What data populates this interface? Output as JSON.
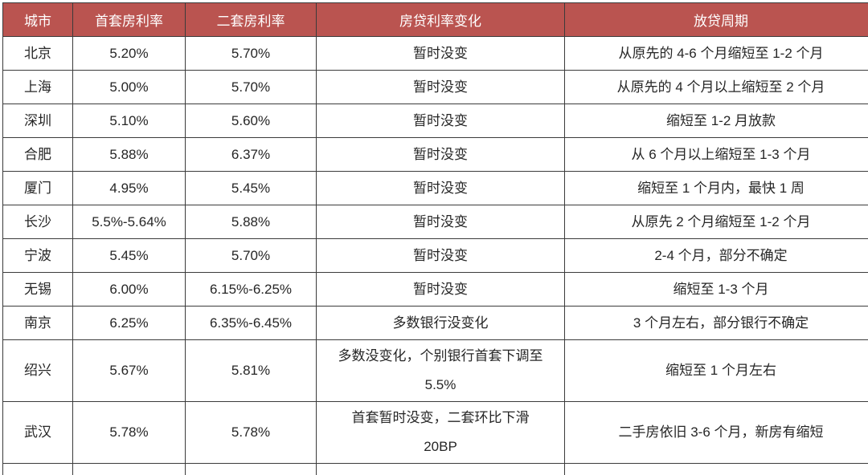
{
  "colors": {
    "header_bg": "#BA5450",
    "header_text": "#FFFFFF",
    "border_color": "#3B3B3B",
    "body_text": "#262626",
    "page_bg": "#FFFFFF"
  },
  "table": {
    "columns": [
      "城市",
      "首套房利率",
      "二套房利率",
      "房贷利率变化",
      "放贷周期"
    ],
    "rows": [
      {
        "cells": [
          "北京",
          "5.20%",
          "5.70%",
          "暂时没变",
          "从原先的 4-6 个月缩短至 1-2 个月"
        ]
      },
      {
        "cells": [
          "上海",
          "5.00%",
          "5.70%",
          "暂时没变",
          "从原先的 4 个月以上缩短至 2 个月"
        ]
      },
      {
        "cells": [
          "深圳",
          "5.10%",
          "5.60%",
          "暂时没变",
          "缩短至 1-2 月放款"
        ]
      },
      {
        "cells": [
          "合肥",
          "5.88%",
          "6.37%",
          "暂时没变",
          "从 6 个月以上缩短至 1-3 个月"
        ]
      },
      {
        "cells": [
          "厦门",
          "4.95%",
          "5.45%",
          "暂时没变",
          "缩短至 1 个月内，最快 1 周"
        ]
      },
      {
        "cells": [
          "长沙",
          "5.5%-5.64%",
          "5.88%",
          "暂时没变",
          "从原先 2 个月缩短至 1-2 个月"
        ]
      },
      {
        "cells": [
          "宁波",
          "5.45%",
          "5.70%",
          "暂时没变",
          "2-4 个月，部分不确定"
        ]
      },
      {
        "cells": [
          "无锡",
          "6.00%",
          "6.15%-6.25%",
          "暂时没变",
          "缩短至 1-3 个月"
        ]
      },
      {
        "cells": [
          "南京",
          "6.25%",
          "6.35%-6.45%",
          "多数银行没变化",
          "3 个月左右，部分银行不确定"
        ]
      },
      {
        "cells": [
          "绍兴",
          "5.67%",
          "5.81%",
          "多数没变化，个别银行首套下调至\n5.5%",
          "缩短至 1 个月左右"
        ]
      },
      {
        "cells": [
          "武汉",
          "5.78%",
          "5.78%",
          "首套暂时没变，二套环比下滑\n20BP",
          "二手房依旧 3-6 个月，新房有缩短"
        ]
      }
    ]
  }
}
